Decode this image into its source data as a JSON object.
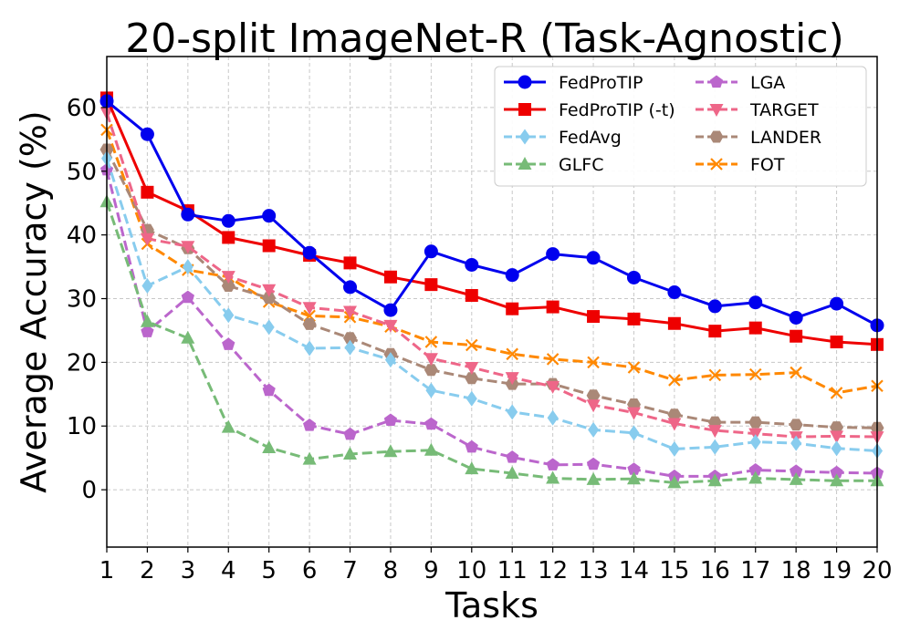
{
  "chart_data": {
    "type": "line",
    "title": "20-split ImageNet-R (Task-Agnostic)",
    "xlabel": "Tasks",
    "ylabel": "Average Accuracy (%)",
    "xlim": [
      1,
      20
    ],
    "ylim": [
      -9,
      68
    ],
    "x": [
      1,
      2,
      3,
      4,
      5,
      6,
      7,
      8,
      9,
      10,
      11,
      12,
      13,
      14,
      15,
      16,
      17,
      18,
      19,
      20
    ],
    "x_tick_labels": [
      "1",
      "2",
      "3",
      "4",
      "5",
      "6",
      "7",
      "8",
      "9",
      "10",
      "11",
      "12",
      "13",
      "14",
      "15",
      "16",
      "17",
      "18",
      "19",
      "20"
    ],
    "y_ticks": [
      0,
      10,
      20,
      30,
      40,
      50,
      60
    ],
    "y_tick_labels": [
      "0",
      "10",
      "20",
      "30",
      "40",
      "50",
      "60"
    ],
    "grid": true,
    "legend_position": "top-right",
    "series": [
      {
        "name": "FedProTIP",
        "color": "#0000ee",
        "dash": "solid",
        "marker": "circle",
        "values": [
          61.0,
          55.8,
          43.2,
          42.2,
          43.0,
          37.2,
          31.8,
          28.2,
          37.4,
          35.3,
          33.7,
          37.0,
          36.4,
          33.3,
          31.0,
          28.8,
          29.4,
          27.0,
          29.2,
          25.8
        ]
      },
      {
        "name": "FedProTIP (-t)",
        "color": "#ee0000",
        "dash": "solid",
        "marker": "square",
        "values": [
          61.5,
          46.7,
          43.8,
          39.6,
          38.3,
          36.8,
          35.6,
          33.4,
          32.2,
          30.5,
          28.4,
          28.7,
          27.2,
          26.8,
          26.1,
          24.9,
          25.4,
          24.1,
          23.2,
          22.8
        ]
      },
      {
        "name": "FedAvg",
        "color": "#88ccee",
        "dash": "dashed",
        "marker": "diamond",
        "values": [
          52.0,
          32.0,
          35.0,
          27.4,
          25.5,
          22.2,
          22.3,
          20.4,
          15.6,
          14.3,
          12.2,
          11.3,
          9.4,
          8.9,
          6.4,
          6.7,
          7.5,
          7.3,
          6.5,
          6.1
        ]
      },
      {
        "name": "GLFC",
        "color": "#77bb77",
        "dash": "dashed",
        "marker": "triangle-up",
        "values": [
          45.2,
          26.4,
          23.8,
          9.8,
          6.6,
          4.8,
          5.6,
          6.0,
          6.2,
          3.3,
          2.6,
          1.8,
          1.6,
          1.7,
          1.1,
          1.4,
          1.8,
          1.6,
          1.4,
          1.4
        ]
      },
      {
        "name": "LGA",
        "color": "#bb66cc",
        "dash": "dashed",
        "marker": "pentagon",
        "values": [
          50.2,
          24.8,
          30.2,
          22.8,
          15.6,
          10.1,
          8.7,
          10.9,
          10.3,
          6.7,
          5.1,
          3.9,
          4.0,
          3.2,
          2.1,
          2.1,
          3.1,
          2.9,
          2.7,
          2.6
        ]
      },
      {
        "name": "TARGET",
        "color": "#ee6688",
        "dash": "dashed",
        "marker": "triangle-down",
        "values": [
          59.2,
          39.4,
          38.2,
          33.5,
          31.4,
          28.6,
          28.0,
          25.8,
          20.6,
          19.2,
          17.6,
          16.2,
          13.3,
          12.1,
          10.4,
          9.3,
          8.8,
          8.3,
          8.4,
          8.3
        ]
      },
      {
        "name": "LANDER",
        "color": "#aa8877",
        "dash": "dashed",
        "marker": "hexagon",
        "values": [
          53.4,
          40.8,
          37.9,
          32.0,
          30.1,
          26.0,
          23.8,
          21.3,
          18.8,
          17.5,
          16.6,
          16.6,
          14.8,
          13.4,
          11.8,
          10.6,
          10.6,
          10.2,
          9.8,
          9.7
        ]
      },
      {
        "name": "FOT",
        "color": "#ff8800",
        "dash": "dashed",
        "marker": "x",
        "values": [
          56.5,
          38.6,
          34.5,
          33.4,
          29.5,
          27.3,
          27.1,
          25.6,
          23.2,
          22.7,
          21.3,
          20.5,
          20.0,
          19.2,
          17.2,
          18.0,
          18.1,
          18.4,
          15.2,
          16.3
        ]
      }
    ]
  }
}
